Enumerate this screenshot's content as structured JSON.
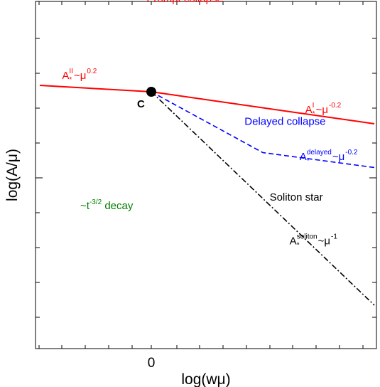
{
  "chart_data": {
    "type": "line",
    "title": "",
    "xlabel": "log(wμ)",
    "ylabel": "log(A/μ)",
    "x_ticks": [
      {
        "value": 0,
        "label": "0"
      }
    ],
    "xlim": [
      -1.0,
      2.0
    ],
    "ylim": [
      -1.7,
      1.45
    ],
    "grid": false,
    "series": [
      {
        "kind": "threshold-AII",
        "style": "solid",
        "color": "#ff0000",
        "x": [
          -1.0,
          0.0
        ],
        "y": [
          0.06,
          0.0
        ]
      },
      {
        "kind": "threshold-AI",
        "style": "solid",
        "color": "#ff0000",
        "x": [
          0.0,
          2.0
        ],
        "y": [
          0.0,
          -0.3
        ]
      },
      {
        "kind": "threshold-delayed",
        "style": "dashed",
        "color": "#0000ff",
        "x": [
          0.0,
          1.0,
          2.0
        ],
        "y": [
          0.0,
          -0.57,
          -0.71
        ]
      },
      {
        "kind": "threshold-soliton",
        "style": "dashdot",
        "color": "#000000",
        "x": [
          0.0,
          2.0
        ],
        "y": [
          0.0,
          -2.0
        ]
      }
    ],
    "critical_point": {
      "label": "C",
      "x": 0.0,
      "y": 0.0
    },
    "region_labels": [
      {
        "text": "Prompt collapse",
        "color": "#ff0000",
        "x": 0.3,
        "y": 0.84
      },
      {
        "text": "Delayed collapse",
        "color": "#0000ff",
        "x": 1.2,
        "y": -0.31
      },
      {
        "text": "Soliton star",
        "color": "#000000",
        "x": 1.3,
        "y": -1.02
      },
      {
        "text": "~t",
        "sup": "-3/2",
        "tail": " decay",
        "color": "#008000",
        "x": -0.4,
        "y": -1.1
      }
    ],
    "curve_labels": [
      {
        "base": "A",
        "sub": "*",
        "sup": "II",
        "tail": "~μ",
        "tail_sup": "0.2",
        "color": "#ff0000",
        "x": -0.8,
        "y": 0.12
      },
      {
        "base": "A",
        "sub": "*",
        "sup": "I",
        "tail": "~μ",
        "tail_sup": "-0.2",
        "color": "#ff0000",
        "x": 1.38,
        "y": -0.2
      },
      {
        "base": "A",
        "sub": "*",
        "sup": "delayed",
        "tail": "~μ",
        "tail_sup": "-0.2",
        "color": "#0000ff",
        "x": 1.33,
        "y": -0.64
      },
      {
        "base": "A",
        "sub": "*",
        "sup": "soliton",
        "tail": "~μ",
        "tail_sup": "-1",
        "color": "#000000",
        "x": 1.24,
        "y": -1.43
      }
    ]
  }
}
